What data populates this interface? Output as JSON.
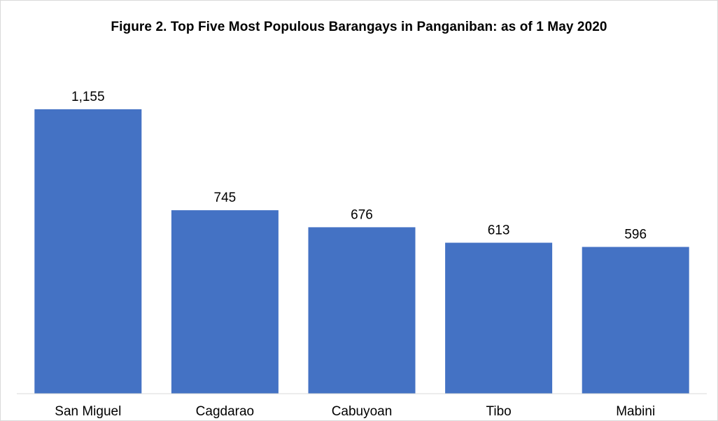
{
  "chart_data": {
    "type": "bar",
    "title": "Figure 2. Top Five Most Populous Barangays in Panganiban: as of 1 May 2020",
    "xlabel": "",
    "ylabel": "",
    "categories": [
      "San Miguel",
      "Cagdarao",
      "Cabuyoan",
      "Tibo",
      "Mabini"
    ],
    "values": [
      1155,
      745,
      676,
      613,
      596
    ],
    "value_labels": [
      "1,155",
      "745",
      "676",
      "613",
      "596"
    ],
    "ylim": [
      0,
      1400
    ],
    "grid": false,
    "legend": "none",
    "bar_color": "#4472C4",
    "axis_color": "#d9d9d9"
  }
}
